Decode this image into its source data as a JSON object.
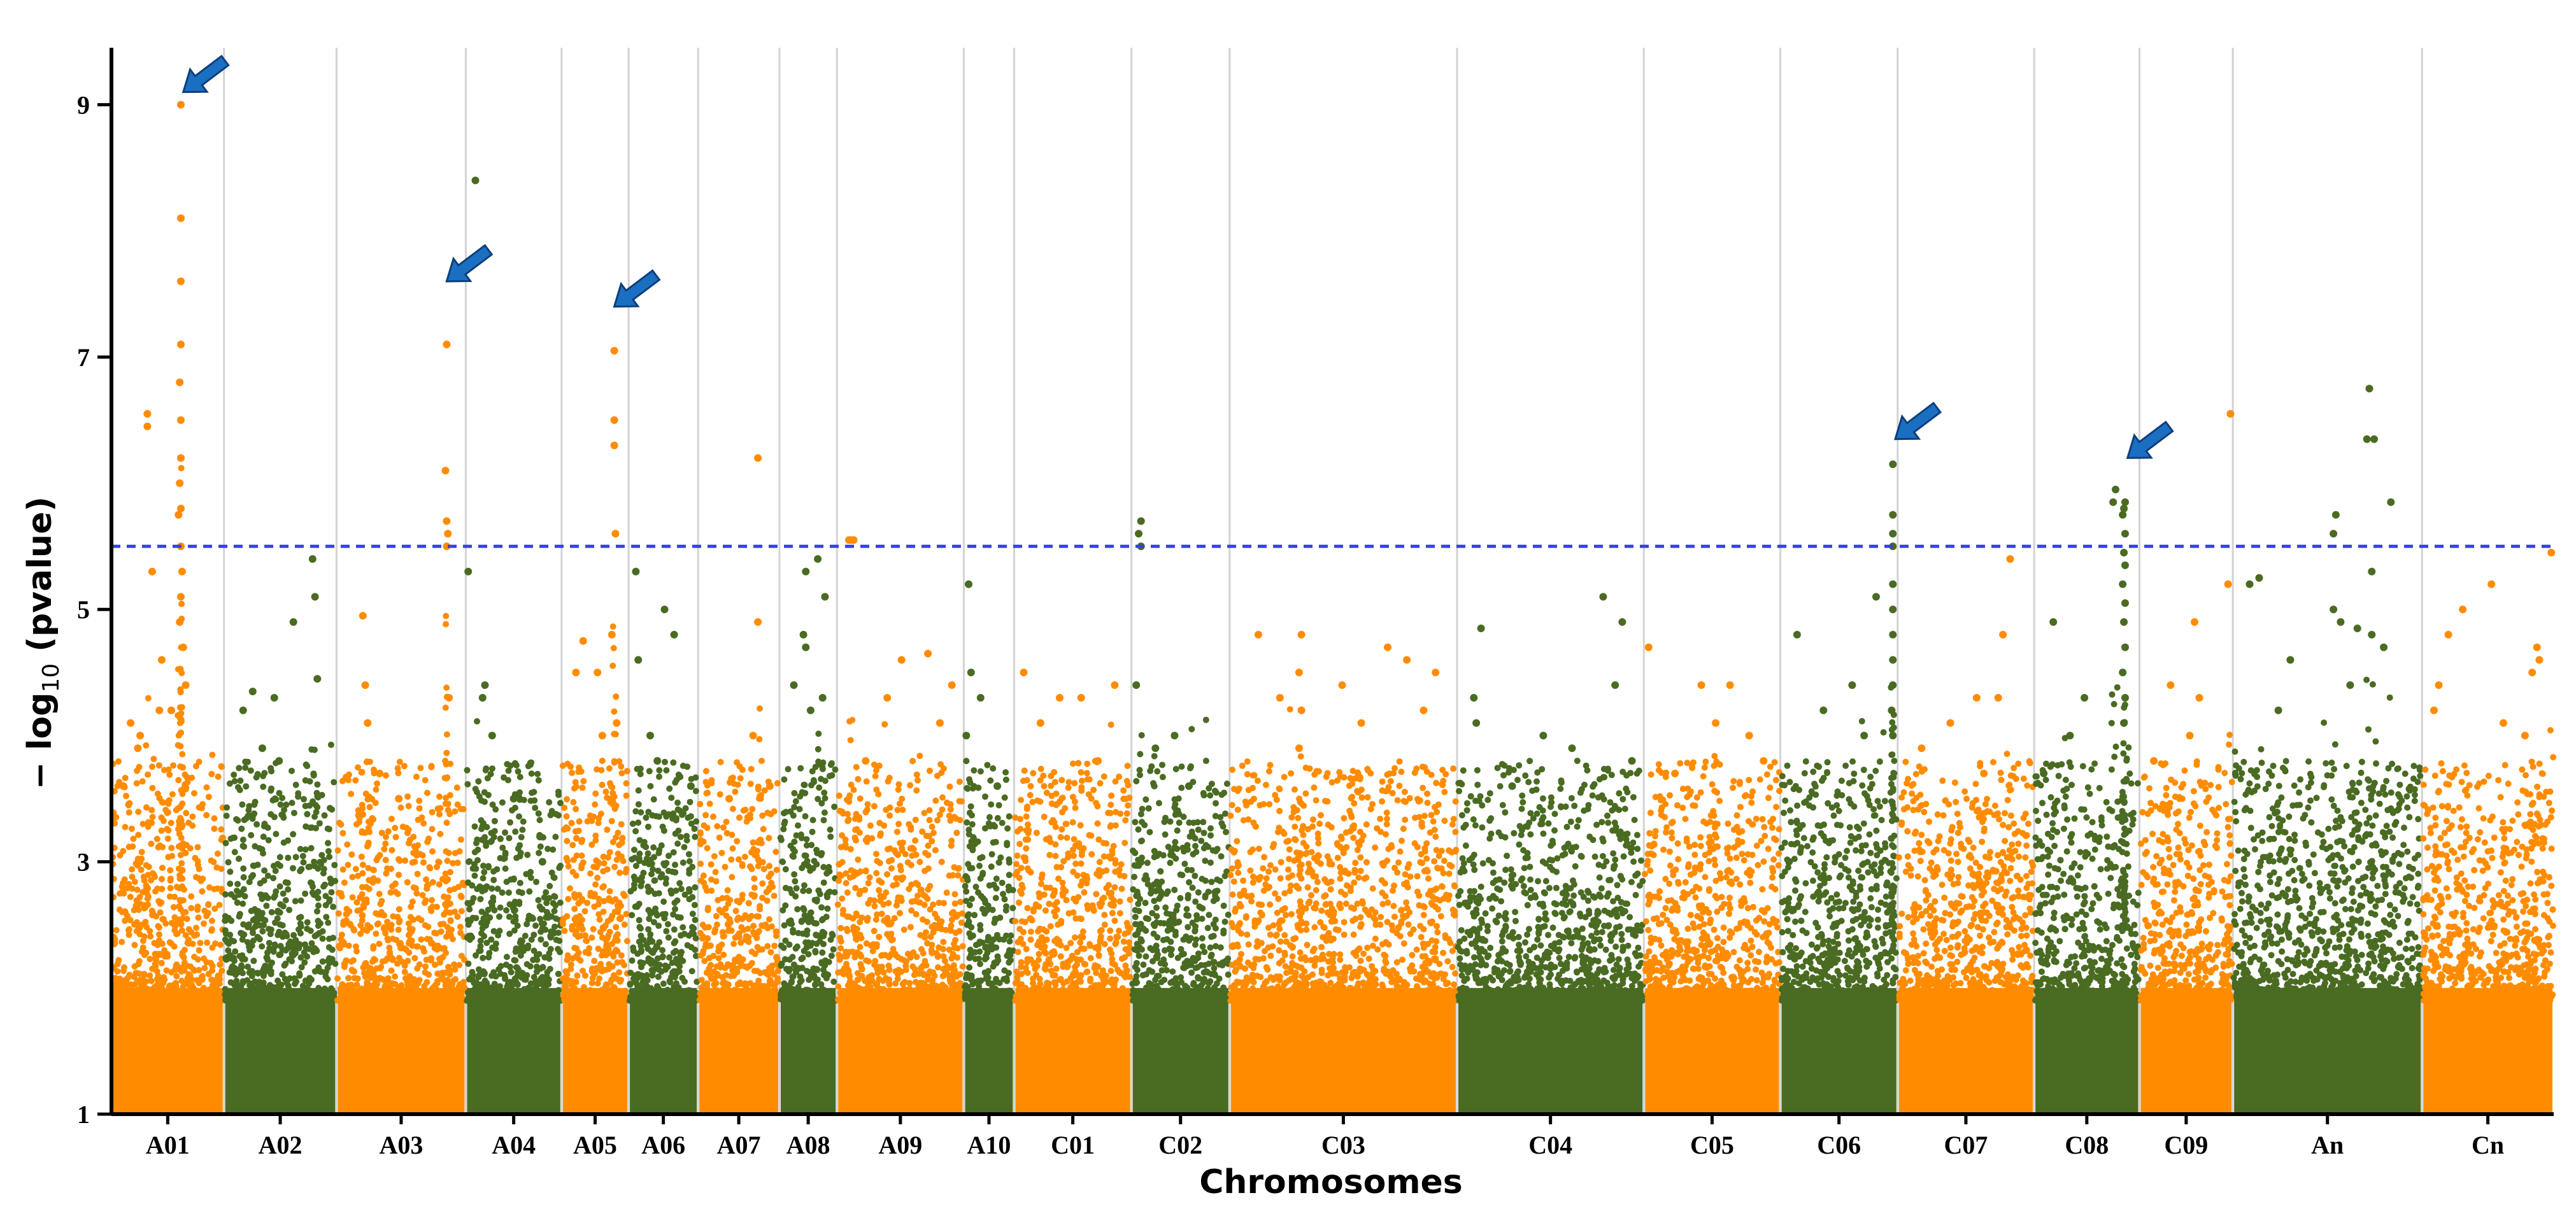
{
  "chart_data": {
    "type": "scatter",
    "subtype": "manhattan",
    "xlabel": "Chromosomes",
    "ylabel_main": "− log",
    "ylabel_sub": "10",
    "ylabel_tail": " (pvalue)",
    "ylim": [
      1,
      9.3
    ],
    "yticks": [
      1,
      3,
      5,
      7,
      9
    ],
    "significance_threshold": 5.5,
    "colors": {
      "orange": "#FF8C00",
      "green": "#4A6B22",
      "threshold": "#3340E8",
      "arrow": "#1B6FC2",
      "grid": "#D3D3D3"
    },
    "chromosomes": [
      {
        "name": "A01",
        "start": 0,
        "end": 4.7,
        "color": "orange",
        "peaks": [
          [
            2.9,
            9.0
          ],
          [
            2.9,
            8.1
          ],
          [
            2.9,
            7.6
          ],
          [
            2.9,
            7.1
          ],
          [
            2.85,
            6.8
          ],
          [
            2.9,
            6.5
          ],
          [
            2.9,
            6.2
          ],
          [
            2.85,
            6.0
          ],
          [
            2.9,
            5.8
          ],
          [
            2.8,
            5.75
          ],
          [
            2.9,
            5.5
          ],
          [
            2.95,
            5.3
          ],
          [
            2.9,
            5.1
          ],
          [
            2.85,
            4.9
          ],
          [
            3.0,
            4.7
          ],
          [
            3.1,
            4.4
          ],
          [
            2.5,
            4.2
          ],
          [
            1.5,
            6.55
          ],
          [
            1.5,
            6.45
          ],
          [
            1.7,
            5.3
          ],
          [
            2.1,
            4.6
          ],
          [
            2.0,
            4.2
          ],
          [
            1.2,
            4.0
          ],
          [
            0.8,
            4.1
          ],
          [
            1.1,
            3.9
          ],
          [
            0.5,
            3.6
          ]
        ]
      },
      {
        "name": "A02",
        "start": 4.7,
        "end": 9.4,
        "color": "green",
        "peaks": [
          [
            8.4,
            5.4
          ],
          [
            8.5,
            5.1
          ],
          [
            7.6,
            4.9
          ],
          [
            8.6,
            4.45
          ],
          [
            5.5,
            4.2
          ],
          [
            6.8,
            4.3
          ],
          [
            6.3,
            3.9
          ],
          [
            7.0,
            3.8
          ],
          [
            5.9,
            4.35
          ]
        ]
      },
      {
        "name": "A03",
        "start": 9.4,
        "end": 14.8,
        "color": "orange",
        "peaks": [
          [
            14.0,
            7.1
          ],
          [
            13.95,
            6.1
          ],
          [
            14.0,
            5.7
          ],
          [
            14.05,
            5.6
          ],
          [
            14.0,
            5.5
          ],
          [
            10.5,
            4.95
          ],
          [
            10.6,
            4.4
          ],
          [
            10.7,
            4.1
          ],
          [
            14.1,
            4.3
          ],
          [
            11.2,
            3.7
          ],
          [
            12.0,
            3.5
          ]
        ]
      },
      {
        "name": "A04",
        "start": 14.8,
        "end": 18.8,
        "color": "green",
        "peaks": [
          [
            15.2,
            8.4
          ],
          [
            14.9,
            5.3
          ],
          [
            15.6,
            4.4
          ],
          [
            15.5,
            4.3
          ],
          [
            15.9,
            4.0
          ],
          [
            17.9,
            3.2
          ],
          [
            18.0,
            3.0
          ],
          [
            16.8,
            3.5
          ]
        ]
      },
      {
        "name": "A05",
        "start": 18.8,
        "end": 21.6,
        "color": "orange",
        "peaks": [
          [
            21.0,
            7.05
          ],
          [
            21.0,
            6.5
          ],
          [
            21.0,
            6.3
          ],
          [
            21.05,
            5.6
          ],
          [
            20.9,
            4.8
          ],
          [
            19.7,
            4.75
          ],
          [
            20.3,
            4.5
          ],
          [
            19.4,
            4.5
          ],
          [
            21.1,
            4.1
          ],
          [
            20.5,
            4.0
          ]
        ]
      },
      {
        "name": "A06",
        "start": 21.6,
        "end": 24.5,
        "color": "green",
        "peaks": [
          [
            21.9,
            5.3
          ],
          [
            23.1,
            5.0
          ],
          [
            23.5,
            4.8
          ],
          [
            22.5,
            4.0
          ],
          [
            22.0,
            4.6
          ],
          [
            24.2,
            3.6
          ],
          [
            22.8,
            3.8
          ]
        ]
      },
      {
        "name": "A07",
        "start": 24.5,
        "end": 27.9,
        "color": "orange",
        "peaks": [
          [
            27.0,
            6.2
          ],
          [
            27.0,
            4.9
          ],
          [
            26.8,
            4.0
          ],
          [
            25.8,
            3.5
          ],
          [
            27.5,
            3.6
          ]
        ]
      },
      {
        "name": "A08",
        "start": 27.9,
        "end": 30.3,
        "color": "green",
        "peaks": [
          [
            29.5,
            5.4
          ],
          [
            29.0,
            5.3
          ],
          [
            29.8,
            5.1
          ],
          [
            28.9,
            4.8
          ],
          [
            29.0,
            4.7
          ],
          [
            29.7,
            4.3
          ],
          [
            28.5,
            4.4
          ],
          [
            29.2,
            4.2
          ]
        ]
      },
      {
        "name": "A09",
        "start": 30.3,
        "end": 35.6,
        "color": "orange",
        "peaks": [
          [
            30.8,
            5.55
          ],
          [
            30.9,
            5.55
          ],
          [
            31.0,
            5.55
          ],
          [
            34.1,
            4.65
          ],
          [
            33.0,
            4.6
          ],
          [
            32.4,
            4.3
          ],
          [
            35.1,
            4.4
          ],
          [
            34.6,
            4.1
          ],
          [
            31.5,
            3.8
          ]
        ]
      },
      {
        "name": "A10",
        "start": 35.6,
        "end": 37.7,
        "color": "green",
        "peaks": [
          [
            35.8,
            5.2
          ],
          [
            35.9,
            4.5
          ],
          [
            36.3,
            4.3
          ],
          [
            35.7,
            4.0
          ],
          [
            37.0,
            3.6
          ]
        ]
      },
      {
        "name": "C01",
        "start": 37.7,
        "end": 42.6,
        "color": "orange",
        "peaks": [
          [
            38.1,
            4.5
          ],
          [
            39.6,
            4.3
          ],
          [
            40.5,
            4.3
          ],
          [
            41.9,
            4.4
          ],
          [
            38.8,
            4.1
          ],
          [
            41.2,
            3.8
          ]
        ]
      },
      {
        "name": "C02",
        "start": 42.6,
        "end": 46.7,
        "color": "green",
        "peaks": [
          [
            43.0,
            5.7
          ],
          [
            42.9,
            5.6
          ],
          [
            43.0,
            5.5
          ],
          [
            42.8,
            4.4
          ],
          [
            44.4,
            4.0
          ],
          [
            43.6,
            3.9
          ],
          [
            45.0,
            3.6
          ]
        ]
      },
      {
        "name": "C03",
        "start": 46.7,
        "end": 56.2,
        "color": "orange",
        "peaks": [
          [
            49.7,
            4.8
          ],
          [
            49.6,
            4.5
          ],
          [
            49.7,
            4.2
          ],
          [
            49.6,
            3.9
          ],
          [
            53.3,
            4.7
          ],
          [
            54.1,
            4.6
          ],
          [
            55.3,
            4.5
          ],
          [
            54.8,
            4.2
          ],
          [
            47.9,
            4.8
          ],
          [
            51.4,
            4.4
          ],
          [
            52.2,
            4.1
          ],
          [
            48.8,
            4.3
          ]
        ]
      },
      {
        "name": "C04",
        "start": 56.2,
        "end": 64.0,
        "color": "green",
        "peaks": [
          [
            57.2,
            4.85
          ],
          [
            56.9,
            4.3
          ],
          [
            57.0,
            4.1
          ],
          [
            62.3,
            5.1
          ],
          [
            63.1,
            4.9
          ],
          [
            62.8,
            4.4
          ],
          [
            59.8,
            4.0
          ],
          [
            61.0,
            3.9
          ],
          [
            58.5,
            3.6
          ],
          [
            63.5,
            3.8
          ]
        ]
      },
      {
        "name": "C05",
        "start": 64.0,
        "end": 69.7,
        "color": "orange",
        "peaks": [
          [
            64.2,
            4.7
          ],
          [
            66.4,
            4.4
          ],
          [
            67.6,
            4.4
          ],
          [
            67.0,
            4.1
          ],
          [
            68.4,
            4.0
          ],
          [
            69.0,
            3.8
          ],
          [
            65.3,
            3.7
          ]
        ]
      },
      {
        "name": "C06",
        "start": 69.7,
        "end": 74.6,
        "color": "green",
        "peaks": [
          [
            74.4,
            6.15
          ],
          [
            74.4,
            5.75
          ],
          [
            74.4,
            5.6
          ],
          [
            74.4,
            5.5
          ],
          [
            74.4,
            5.2
          ],
          [
            74.4,
            5.0
          ],
          [
            74.4,
            4.8
          ],
          [
            74.4,
            4.6
          ],
          [
            74.4,
            4.4
          ],
          [
            74.35,
            4.2
          ],
          [
            74.4,
            4.0
          ],
          [
            73.7,
            5.1
          ],
          [
            70.4,
            4.8
          ],
          [
            71.5,
            4.2
          ],
          [
            72.7,
            4.4
          ],
          [
            73.2,
            4.0
          ]
        ]
      },
      {
        "name": "C07",
        "start": 74.6,
        "end": 80.3,
        "color": "orange",
        "peaks": [
          [
            79.3,
            5.4
          ],
          [
            79.0,
            4.8
          ],
          [
            78.8,
            4.3
          ],
          [
            77.9,
            4.3
          ],
          [
            76.8,
            4.1
          ],
          [
            75.6,
            3.9
          ],
          [
            78.2,
            3.7
          ]
        ]
      },
      {
        "name": "C08",
        "start": 80.3,
        "end": 84.7,
        "color": "green",
        "peaks": [
          [
            84.1,
            5.85
          ],
          [
            84.05,
            5.8
          ],
          [
            84.0,
            5.75
          ],
          [
            84.1,
            5.6
          ],
          [
            84.05,
            5.45
          ],
          [
            84.1,
            5.35
          ],
          [
            84.0,
            5.2
          ],
          [
            84.1,
            5.05
          ],
          [
            84.05,
            4.9
          ],
          [
            84.1,
            4.7
          ],
          [
            84.0,
            4.5
          ],
          [
            84.1,
            4.3
          ],
          [
            84.05,
            4.1
          ],
          [
            83.7,
            5.95
          ],
          [
            83.6,
            5.85
          ],
          [
            81.1,
            4.9
          ],
          [
            82.4,
            4.3
          ],
          [
            81.8,
            4.0
          ],
          [
            80.7,
            3.7
          ]
        ]
      },
      {
        "name": "C09",
        "start": 84.7,
        "end": 88.6,
        "color": "orange",
        "peaks": [
          [
            88.5,
            6.55
          ],
          [
            88.4,
            5.2
          ],
          [
            87.0,
            4.9
          ],
          [
            86.0,
            4.4
          ],
          [
            87.2,
            4.3
          ],
          [
            86.8,
            4.0
          ],
          [
            85.3,
            3.8
          ]
        ]
      },
      {
        "name": "An",
        "start": 88.6,
        "end": 96.5,
        "color": "green",
        "peaks": [
          [
            94.3,
            6.75
          ],
          [
            94.5,
            6.35
          ],
          [
            94.2,
            6.35
          ],
          [
            95.2,
            5.85
          ],
          [
            92.9,
            5.75
          ],
          [
            92.8,
            5.6
          ],
          [
            89.3,
            5.2
          ],
          [
            89.7,
            5.25
          ],
          [
            94.4,
            5.3
          ],
          [
            92.8,
            5.0
          ],
          [
            93.1,
            4.9
          ],
          [
            93.8,
            4.85
          ],
          [
            94.4,
            4.8
          ],
          [
            94.9,
            4.7
          ],
          [
            91.0,
            4.6
          ],
          [
            93.5,
            4.4
          ],
          [
            90.5,
            4.2
          ]
        ]
      },
      {
        "name": "Cn",
        "start": 96.5,
        "end": 102.0,
        "color": "orange",
        "peaks": [
          [
            101.9,
            5.45
          ],
          [
            99.4,
            5.2
          ],
          [
            98.2,
            5.0
          ],
          [
            97.6,
            4.8
          ],
          [
            101.3,
            4.7
          ],
          [
            101.4,
            4.6
          ],
          [
            101.1,
            4.5
          ],
          [
            97.2,
            4.4
          ],
          [
            97.0,
            4.2
          ],
          [
            99.9,
            4.1
          ],
          [
            100.8,
            4.0
          ]
        ]
      }
    ],
    "arrows": [
      {
        "x": 3.0,
        "y": 9.1,
        "chromosome": "A01"
      },
      {
        "x": 14.0,
        "y": 7.6,
        "chromosome": "A03"
      },
      {
        "x": 21.0,
        "y": 7.4,
        "chromosome": "A05"
      },
      {
        "x": 74.5,
        "y": 6.35,
        "chromosome": "C06"
      },
      {
        "x": 84.2,
        "y": 6.2,
        "chromosome": "C08"
      }
    ]
  }
}
